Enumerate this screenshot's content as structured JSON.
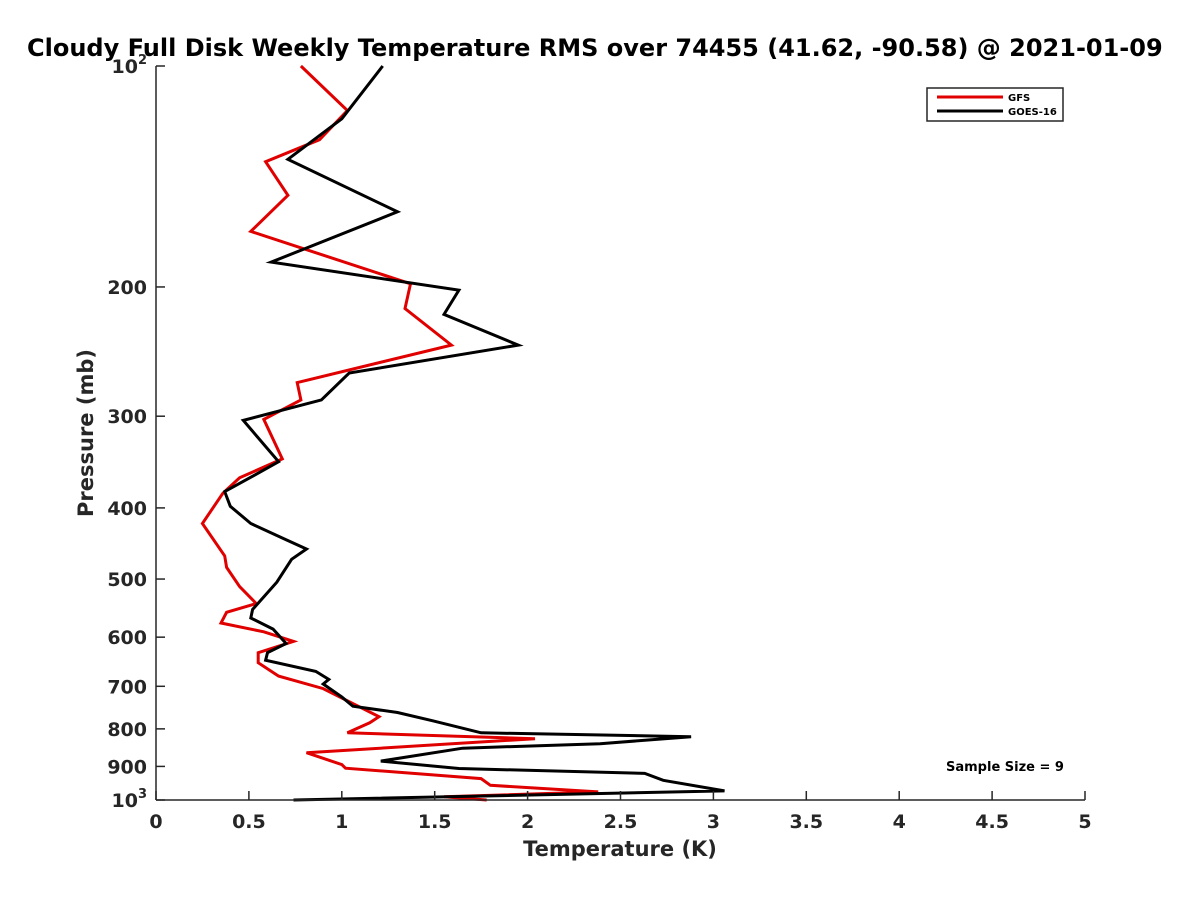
{
  "chart_data": {
    "type": "line",
    "title": "Cloudy Full Disk Weekly Temperature RMS over 74455 (41.62, -90.58) @ 2021-01-09",
    "xlabel": "Temperature (K)",
    "ylabel": "Pressure (mb)",
    "xlim": [
      0,
      5
    ],
    "ylim": [
      100,
      1000
    ],
    "y_scale": "log",
    "y_reversed": true,
    "x_ticks": [
      {
        "value": 0,
        "label": "0"
      },
      {
        "value": 0.5,
        "label": "0.5"
      },
      {
        "value": 1,
        "label": "1"
      },
      {
        "value": 1.5,
        "label": "1.5"
      },
      {
        "value": 2,
        "label": "2"
      },
      {
        "value": 2.5,
        "label": "2.5"
      },
      {
        "value": 3,
        "label": "3"
      },
      {
        "value": 3.5,
        "label": "3.5"
      },
      {
        "value": 4,
        "label": "4"
      },
      {
        "value": 4.5,
        "label": "4.5"
      },
      {
        "value": 5,
        "label": "5"
      }
    ],
    "y_ticks": [
      {
        "value": 100,
        "base": "10",
        "exp": "2"
      },
      {
        "value": 200,
        "base": "200",
        "exp": ""
      },
      {
        "value": 300,
        "base": "300",
        "exp": ""
      },
      {
        "value": 400,
        "base": "400",
        "exp": ""
      },
      {
        "value": 500,
        "base": "500",
        "exp": ""
      },
      {
        "value": 600,
        "base": "600",
        "exp": ""
      },
      {
        "value": 700,
        "base": "700",
        "exp": ""
      },
      {
        "value": 800,
        "base": "800",
        "exp": ""
      },
      {
        "value": 900,
        "base": "900",
        "exp": ""
      },
      {
        "value": 1000,
        "base": "10",
        "exp": "3"
      }
    ],
    "grid": false,
    "legend_position": "top-right",
    "annotation": "Sample Size = 9",
    "series": [
      {
        "name": "GFS",
        "color": "#e00000",
        "points": [
          [
            0.78,
            100
          ],
          [
            1.03,
            115
          ],
          [
            0.88,
            126
          ],
          [
            0.59,
            135
          ],
          [
            0.71,
            150
          ],
          [
            0.51,
            168
          ],
          [
            1.37,
            198
          ],
          [
            1.34,
            214
          ],
          [
            1.59,
            240
          ],
          [
            0.76,
            270
          ],
          [
            0.78,
            285
          ],
          [
            0.58,
            303
          ],
          [
            0.68,
            343
          ],
          [
            0.45,
            364
          ],
          [
            0.36,
            382
          ],
          [
            0.25,
            420
          ],
          [
            0.37,
            465
          ],
          [
            0.38,
            482
          ],
          [
            0.45,
            512
          ],
          [
            0.54,
            540
          ],
          [
            0.38,
            555
          ],
          [
            0.35,
            574
          ],
          [
            0.58,
            590
          ],
          [
            0.74,
            608
          ],
          [
            0.55,
            630
          ],
          [
            0.55,
            650
          ],
          [
            0.66,
            678
          ],
          [
            0.9,
            705
          ],
          [
            1.2,
            770
          ],
          [
            1.15,
            785
          ],
          [
            1.03,
            810
          ],
          [
            2.04,
            825
          ],
          [
            0.81,
            862
          ],
          [
            1.0,
            895
          ],
          [
            1.02,
            905
          ],
          [
            1.75,
            935
          ],
          [
            1.8,
            955
          ],
          [
            2.38,
            975
          ],
          [
            1.55,
            990
          ],
          [
            1.78,
            1000
          ]
        ]
      },
      {
        "name": "GOES-16",
        "color": "#000000",
        "points": [
          [
            1.22,
            100
          ],
          [
            1.0,
            118
          ],
          [
            0.71,
            134
          ],
          [
            1.3,
            158
          ],
          [
            0.62,
            185
          ],
          [
            1.63,
            202
          ],
          [
            1.55,
            218
          ],
          [
            1.95,
            240
          ],
          [
            1.04,
            262
          ],
          [
            0.89,
            285
          ],
          [
            0.47,
            304
          ],
          [
            0.66,
            346
          ],
          [
            0.53,
            361
          ],
          [
            0.37,
            380
          ],
          [
            0.4,
            398
          ],
          [
            0.51,
            420
          ],
          [
            0.7,
            442
          ],
          [
            0.81,
            455
          ],
          [
            0.73,
            470
          ],
          [
            0.65,
            505
          ],
          [
            0.52,
            550
          ],
          [
            0.51,
            565
          ],
          [
            0.63,
            585
          ],
          [
            0.7,
            612
          ],
          [
            0.6,
            630
          ],
          [
            0.59,
            645
          ],
          [
            0.86,
            668
          ],
          [
            0.93,
            685
          ],
          [
            0.9,
            695
          ],
          [
            1.0,
            724
          ],
          [
            1.06,
            745
          ],
          [
            1.3,
            760
          ],
          [
            1.49,
            780
          ],
          [
            1.75,
            810
          ],
          [
            2.88,
            820
          ],
          [
            2.39,
            838
          ],
          [
            1.65,
            850
          ],
          [
            1.21,
            885
          ],
          [
            1.63,
            906
          ],
          [
            2.63,
            920
          ],
          [
            2.73,
            940
          ],
          [
            3.06,
            972
          ],
          [
            0.74,
            1000
          ]
        ]
      }
    ]
  },
  "colors": {
    "axis": "#262626",
    "background": "#ffffff"
  }
}
